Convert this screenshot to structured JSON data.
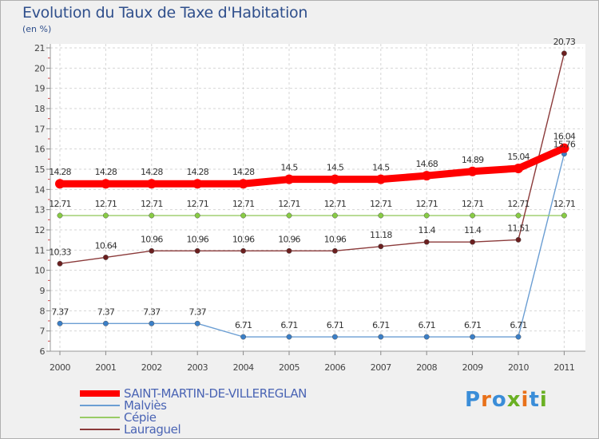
{
  "title": "Evolution du Taux de Taxe d'Habitation",
  "subtitle": "(en %)",
  "logo": {
    "text": "Proxiti",
    "letters": [
      "P",
      "r",
      "o",
      "x",
      "i",
      "t",
      "i"
    ],
    "colors": [
      "#3a8dd8",
      "#e8711a",
      "#3a8dd8",
      "#6ab023",
      "#e8711a",
      "#3a8dd8",
      "#6ab023"
    ]
  },
  "chart_data": {
    "type": "line",
    "title": "Evolution du Taux de Taxe d'Habitation",
    "ylabel": "(en %)",
    "xlabel": "",
    "x": [
      "2000",
      "2001",
      "2002",
      "2003",
      "2004",
      "2005",
      "2006",
      "2007",
      "2008",
      "2009",
      "2010",
      "2011"
    ],
    "ylim": [
      6,
      21
    ],
    "yticks": [
      "6",
      "7",
      "8",
      "9",
      "10",
      "11",
      "12",
      "13",
      "14",
      "15",
      "16",
      "17",
      "18",
      "19",
      "20",
      "21"
    ],
    "grid": "dashed",
    "series": [
      {
        "name": "SAINT-MARTIN-DE-VILLEREGLAN",
        "color": "#ff0000",
        "marker": "#ff0000",
        "width": 9,
        "values": [
          14.28,
          14.28,
          14.28,
          14.28,
          14.28,
          14.5,
          14.5,
          14.5,
          14.68,
          14.89,
          15.04,
          16.04
        ],
        "labels": [
          "14.28",
          "14.28",
          "14.28",
          "14.28",
          "14.28",
          "14.5",
          "14.5",
          "14.5",
          "14.68",
          "14.89",
          "15.04",
          "16.04"
        ]
      },
      {
        "name": "Malviès",
        "color": "#6b9ed3",
        "marker": "#3b7fc7",
        "width": 1.4,
        "values": [
          7.37,
          7.37,
          7.37,
          7.37,
          6.71,
          6.71,
          6.71,
          6.71,
          6.71,
          6.71,
          6.71,
          15.76
        ],
        "labels": [
          "7.37",
          "7.37",
          "7.37",
          "7.37",
          "6.71",
          "6.71",
          "6.71",
          "6.71",
          "6.71",
          "6.71",
          "6.71",
          "15.76"
        ]
      },
      {
        "name": "Cépie",
        "color": "#99cc66",
        "marker": "#88cc44",
        "width": 1.4,
        "values": [
          12.71,
          12.71,
          12.71,
          12.71,
          12.71,
          12.71,
          12.71,
          12.71,
          12.71,
          12.71,
          12.71,
          12.71
        ],
        "labels": [
          "12.71",
          "12.71",
          "12.71",
          "12.71",
          "12.71",
          "12.71",
          "12.71",
          "12.71",
          "12.71",
          "12.71",
          "12.71",
          "12.71"
        ]
      },
      {
        "name": "Lauraguel",
        "color": "#8b3a3a",
        "marker": "#6b1f1f",
        "width": 1.4,
        "values": [
          10.33,
          10.64,
          10.96,
          10.96,
          10.96,
          10.96,
          10.96,
          11.18,
          11.4,
          11.4,
          11.51,
          20.73
        ],
        "labels": [
          "10.33",
          "10.64",
          "10.96",
          "10.96",
          "10.96",
          "10.96",
          "10.96",
          "11.18",
          "11.4",
          "11.4",
          "11.51",
          "20.73"
        ]
      }
    ]
  }
}
